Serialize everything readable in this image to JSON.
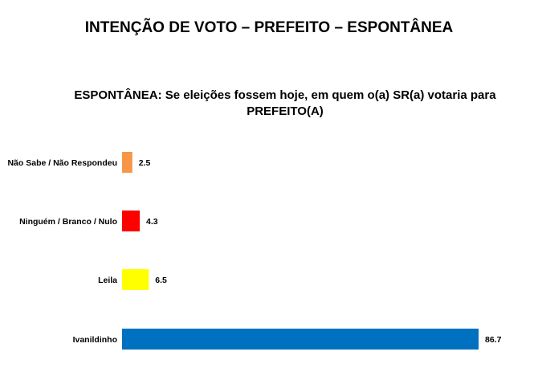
{
  "header": {
    "title": "INTENÇÃO DE VOTO – PREFEITO – ESPONTÂNEA"
  },
  "chart_data": {
    "type": "bar",
    "orientation": "horizontal",
    "title": "ESPONTÂNEA: Se eleições fossem hoje, em quem o(a) SR(a) votaria para PREFEITO(A)",
    "categories": [
      "Não Sabe / Não Respondeu",
      "Ninguém / Branco / Nulo",
      "Leila",
      "Ivanildinho"
    ],
    "values": [
      2.5,
      4.3,
      6.5,
      86.7
    ],
    "value_labels": [
      "2.5",
      "4.3",
      "6.5",
      "86.7"
    ],
    "colors": [
      "#F79646",
      "#FF0000",
      "#FFFF00",
      "#0070C0"
    ],
    "xlim": [
      0,
      86.7
    ],
    "grid": false,
    "legend": "none"
  }
}
